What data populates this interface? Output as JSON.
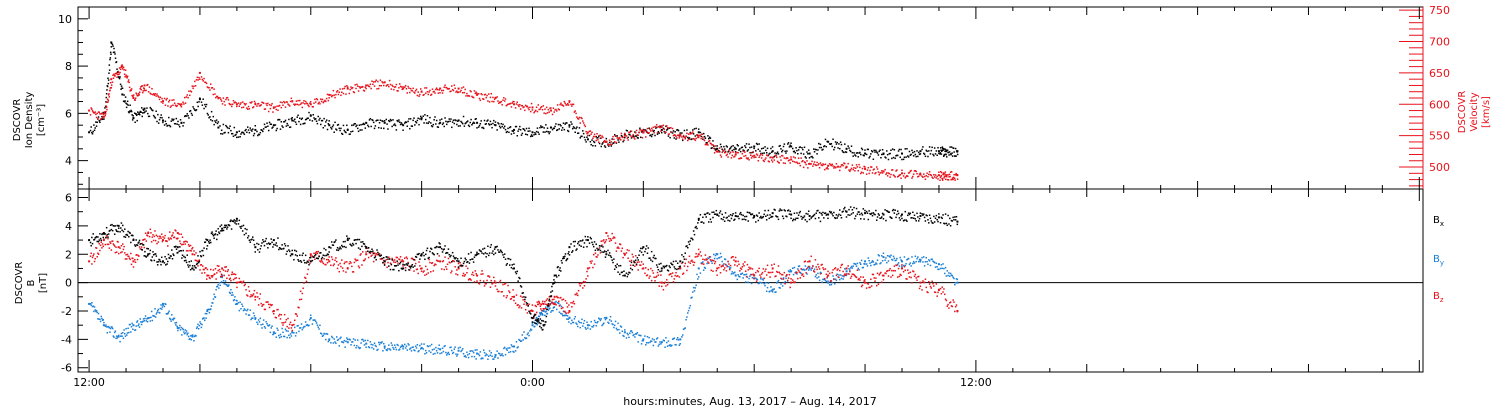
{
  "chart_data": [
    {
      "type": "scatter",
      "panel": "plasma",
      "ylabel_left": [
        "DSCOVR",
        "Ion Density",
        "[cm⁻³]"
      ],
      "ylabel_right": [
        "DSCOVR",
        "Velocity",
        "[km/s]"
      ],
      "ylim_left": [
        2.8,
        10.5
      ],
      "ylim_right": [
        465,
        755
      ],
      "yticks_left": [
        "4",
        "6",
        "8",
        "10"
      ],
      "yticks_right": [
        "500",
        "550",
        "600",
        "650",
        "700",
        "750"
      ],
      "colors": {
        "density": "#000000",
        "velocity": "#e8121b"
      },
      "series": [
        {
          "name": "Ion Density",
          "axis": "left",
          "color": "#000000",
          "x": [
            -12,
            -11.6,
            -11.4,
            -11.1,
            -10.8,
            -10.5,
            -10,
            -9.5,
            -9,
            -8.5,
            -8,
            -7.5,
            -7,
            -6.5,
            -6,
            -5.5,
            -5,
            -4.5,
            -4,
            -3.5,
            -3,
            -2.5,
            -2,
            -1.5,
            -1,
            -0.5,
            0,
            0.5,
            1,
            1.5,
            2,
            2.5,
            3,
            3.5,
            4,
            4.5,
            5,
            5.5,
            6,
            6.5,
            7,
            7.5,
            8,
            8.5,
            9,
            9.5,
            10,
            10.5,
            11,
            11.2,
            11.5
          ],
          "y": [
            5.2,
            6.0,
            9.0,
            6.8,
            5.8,
            6.2,
            5.7,
            5.6,
            6.6,
            5.4,
            5.2,
            5.3,
            5.5,
            5.7,
            5.9,
            5.5,
            5.3,
            5.6,
            5.6,
            5.5,
            5.8,
            5.6,
            5.7,
            5.6,
            5.5,
            5.3,
            5.2,
            5.4,
            5.5,
            4.9,
            4.8,
            5.1,
            5.2,
            5.3,
            5.1,
            5.2,
            4.5,
            4.5,
            4.6,
            4.4,
            4.6,
            4.3,
            4.8,
            4.5,
            4.3,
            4.3,
            4.3,
            4.4,
            4.4,
            4.4,
            4.4
          ]
        },
        {
          "name": "Velocity",
          "axis": "right",
          "color": "#e8121b",
          "x": [
            -12,
            -11.6,
            -11.4,
            -11.1,
            -10.8,
            -10.5,
            -10,
            -9.5,
            -9,
            -8.5,
            -8,
            -7.5,
            -7,
            -6.5,
            -6,
            -5.5,
            -5,
            -4.5,
            -4,
            -3.5,
            -3,
            -2.5,
            -2,
            -1.5,
            -1,
            -0.5,
            0,
            0.5,
            1,
            1.5,
            2,
            2.5,
            3,
            3.5,
            4,
            4.5,
            5,
            5.5,
            6,
            6.5,
            7,
            7.5,
            8,
            8.5,
            9,
            9.5,
            10,
            10.5,
            11,
            11.2,
            11.5
          ],
          "y": [
            590,
            580,
            640,
            660,
            610,
            630,
            605,
            600,
            650,
            610,
            600,
            600,
            595,
            605,
            600,
            615,
            625,
            630,
            635,
            625,
            620,
            625,
            625,
            615,
            610,
            600,
            595,
            590,
            605,
            555,
            540,
            550,
            555,
            565,
            550,
            550,
            525,
            520,
            518,
            515,
            512,
            505,
            502,
            500,
            497,
            493,
            490,
            488,
            487,
            487,
            487
          ]
        }
      ]
    },
    {
      "type": "scatter",
      "panel": "magnetic-field",
      "ylabel_left": [
        "DSCOVR",
        "B",
        "[nT]"
      ],
      "ylim": [
        -6.3,
        6.6
      ],
      "yticks": [
        "-6",
        "-4",
        "-2",
        "0",
        "2",
        "4",
        "6"
      ],
      "zero_line": true,
      "colors": {
        "bx": "#000000",
        "by": "#1a7fd6",
        "bz": "#e8121b"
      },
      "legend": [
        "Bx",
        "By",
        "Bz"
      ],
      "series": [
        {
          "name": "Bx",
          "color": "#000000",
          "x": [
            -12,
            -11.6,
            -11.2,
            -10.8,
            -10.4,
            -10,
            -9.6,
            -9.2,
            -8.8,
            -8.4,
            -8,
            -7.5,
            -7,
            -6.5,
            -6,
            -5.5,
            -5,
            -4.5,
            -4,
            -3.5,
            -3,
            -2.5,
            -2,
            -1.5,
            -1,
            -0.5,
            0,
            0.3,
            0.6,
            1,
            1.5,
            2,
            2.5,
            3,
            3.5,
            4,
            4.5,
            5,
            5.5,
            6,
            6.5,
            7,
            7.5,
            8,
            8.5,
            9,
            9.5,
            10,
            10.5,
            11,
            11.5
          ],
          "y": [
            3.0,
            3.5,
            4.0,
            3.0,
            2.0,
            1.5,
            2.5,
            1.0,
            3.0,
            3.8,
            4.5,
            2.5,
            3.0,
            2.0,
            1.5,
            2.5,
            3.0,
            2.5,
            1.5,
            1.0,
            2.0,
            2.5,
            1.5,
            2.0,
            2.5,
            1.0,
            -2.5,
            -3.0,
            0.5,
            2.5,
            3.0,
            2.0,
            0.5,
            2.5,
            1.0,
            1.5,
            4.5,
            4.8,
            4.7,
            4.7,
            4.9,
            4.8,
            4.7,
            4.8,
            5.0,
            4.9,
            4.8,
            4.8,
            4.7,
            4.6,
            4.3
          ]
        },
        {
          "name": "By",
          "color": "#1a7fd6",
          "x": [
            -12,
            -11.6,
            -11.2,
            -10.8,
            -10.4,
            -10,
            -9.6,
            -9.2,
            -8.8,
            -8.4,
            -8,
            -7.5,
            -7,
            -6.5,
            -6,
            -5.5,
            -5,
            -4.5,
            -4,
            -3.5,
            -3,
            -2.5,
            -2,
            -1.5,
            -1,
            -0.5,
            0,
            0.3,
            0.6,
            1,
            1.5,
            2,
            2.5,
            3,
            3.5,
            4,
            4.5,
            5,
            5.5,
            6,
            6.5,
            7,
            7.5,
            8,
            8.5,
            9,
            9.5,
            10,
            10.5,
            11,
            11.5
          ],
          "y": [
            -1.5,
            -3.0,
            -3.8,
            -3.0,
            -2.5,
            -1.5,
            -3.2,
            -3.8,
            -2.0,
            0.5,
            -1.5,
            -2.5,
            -3.5,
            -3.5,
            -2.5,
            -4.0,
            -4.2,
            -4.3,
            -4.5,
            -4.5,
            -4.6,
            -4.7,
            -4.8,
            -5.0,
            -5.1,
            -4.5,
            -3.0,
            -2.0,
            -1.5,
            -2.5,
            -3.0,
            -2.5,
            -3.5,
            -4.0,
            -4.2,
            -4.0,
            1.0,
            2.0,
            0.5,
            0.3,
            -0.5,
            0.8,
            1.0,
            0.0,
            0.8,
            1.5,
            1.8,
            1.5,
            1.6,
            1.3,
            0.0
          ]
        },
        {
          "name": "Bz",
          "color": "#e8121b",
          "x": [
            -12,
            -11.6,
            -11.2,
            -10.8,
            -10.4,
            -10,
            -9.6,
            -9.2,
            -8.8,
            -8.4,
            -8,
            -7.5,
            -7,
            -6.5,
            -6,
            -5.5,
            -5,
            -4.5,
            -4,
            -3.5,
            -3,
            -2.5,
            -2,
            -1.5,
            -1,
            -0.5,
            0,
            0.3,
            0.6,
            1,
            1.5,
            2,
            2.5,
            3,
            3.5,
            4,
            4.5,
            5,
            5.5,
            6,
            6.5,
            7,
            7.5,
            8,
            8.5,
            9,
            9.5,
            10,
            10.5,
            11,
            11.5
          ],
          "y": [
            1.5,
            3.0,
            2.5,
            1.5,
            3.5,
            3.0,
            3.5,
            2.0,
            0.5,
            1.0,
            0.0,
            -1.0,
            -2.0,
            -3.0,
            2.0,
            1.5,
            1.0,
            2.0,
            1.5,
            1.5,
            1.0,
            1.5,
            1.0,
            0.5,
            0.0,
            -1.0,
            -2.0,
            -1.5,
            -1.0,
            -2.0,
            1.0,
            3.5,
            2.0,
            1.0,
            0.0,
            1.0,
            2.0,
            1.0,
            1.5,
            0.5,
            1.0,
            0.0,
            1.5,
            0.5,
            1.0,
            0.0,
            0.5,
            1.0,
            0.0,
            -0.5,
            -2.0
          ]
        }
      ]
    }
  ],
  "x_axis": {
    "range_hours": [
      -12.3,
      24.1
    ],
    "tick_labels": [
      {
        "hour": -12,
        "label": "12:00"
      },
      {
        "hour": 0,
        "label": "0:00"
      },
      {
        "hour": 12,
        "label": "12:00"
      }
    ],
    "xlabel": "hours:minutes, Aug. 13, 2017 – Aug. 14, 2017"
  }
}
